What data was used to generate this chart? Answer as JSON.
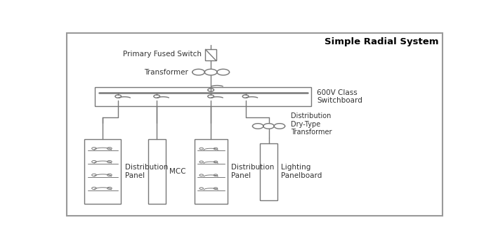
{
  "title": "Simple Radial System",
  "line_color": "#777777",
  "text_color": "#333333",
  "labels": {
    "primary_fused_switch": "Primary Fused Switch",
    "transformer": "Transformer",
    "switchboard": "600V Class\nSwitchboard",
    "dist_panel1": "Distribution\nPanel",
    "mcc": "MCC",
    "dist_panel2": "Distribution\nPanel",
    "dist_dry_transformer": "Distribution\nDry-Type\nTransformer",
    "lighting": "Lighting\nPanelboard"
  },
  "figsize": [
    7.09,
    3.5
  ],
  "dpi": 100
}
